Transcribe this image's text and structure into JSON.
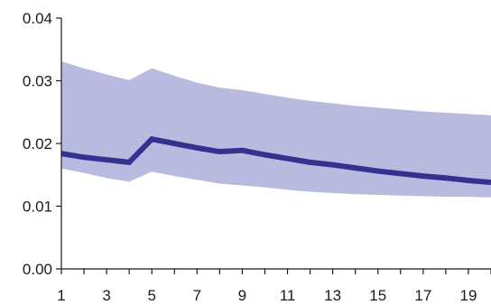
{
  "chart_data": {
    "type": "line",
    "title": "",
    "xlabel": "",
    "ylabel": "",
    "x": [
      1,
      2,
      3,
      4,
      5,
      6,
      7,
      8,
      9,
      10,
      11,
      12,
      13,
      14,
      15,
      16,
      17,
      18,
      19,
      20
    ],
    "xlim": [
      1,
      20
    ],
    "ylim": [
      0,
      0.04
    ],
    "x_tick_labels": [
      "1",
      "3",
      "5",
      "7",
      "9",
      "11",
      "13",
      "15",
      "17",
      "19"
    ],
    "y_tick_labels": [
      "0.00",
      "0.01",
      "0.02",
      "0.03",
      "0.04"
    ],
    "y_ticks": [
      0,
      0.01,
      0.02,
      0.03,
      0.04
    ],
    "grid": false,
    "legend": "none",
    "series": [
      {
        "values": [
          0.0184,
          0.0178,
          0.0174,
          0.017,
          0.0207,
          0.02,
          0.0193,
          0.0187,
          0.0189,
          0.0182,
          0.0176,
          0.017,
          0.0166,
          0.0161,
          0.0156,
          0.0152,
          0.0148,
          0.0145,
          0.0141,
          0.0138
        ],
        "color": "#33338f"
      }
    ],
    "band": {
      "upper": [
        0.0331,
        0.032,
        0.031,
        0.0301,
        0.032,
        0.0308,
        0.0297,
        0.0289,
        0.0285,
        0.0279,
        0.0273,
        0.0268,
        0.0264,
        0.026,
        0.0257,
        0.0254,
        0.0251,
        0.0249,
        0.0247,
        0.0245
      ],
      "lower": [
        0.016,
        0.0153,
        0.0145,
        0.0139,
        0.0155,
        0.0148,
        0.0142,
        0.0136,
        0.0133,
        0.013,
        0.0126,
        0.0123,
        0.0121,
        0.0119,
        0.0118,
        0.0117,
        0.0116,
        0.0115,
        0.0115,
        0.0114
      ],
      "color": "#b8bbdf"
    }
  }
}
